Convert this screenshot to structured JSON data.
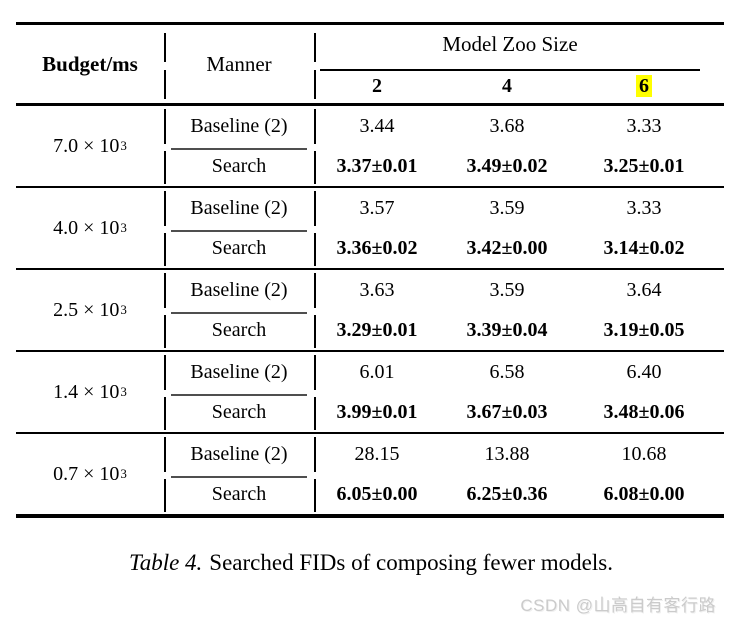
{
  "page": {
    "background": "#ffffff"
  },
  "table": {
    "header": {
      "budget_label": "Budget/ms",
      "manner_label": "Manner",
      "zoo_group_label": "Model Zoo Size",
      "zoo_sizes": [
        "2",
        "4",
        "6"
      ],
      "highlighted_zoo_size": "6",
      "highlight_color": "#ffff00"
    },
    "blocks": [
      {
        "budget_base": "7.0 × 10",
        "budget_exp": "3",
        "baseline_label": "Baseline (2)",
        "baseline_values": [
          "3.44",
          "3.68",
          "3.33"
        ],
        "search_label": "Search",
        "search_values": [
          "3.37±0.01",
          "3.49±0.02",
          "3.25±0.01"
        ]
      },
      {
        "budget_base": "4.0 × 10",
        "budget_exp": "3",
        "baseline_label": "Baseline (2)",
        "baseline_values": [
          "3.57",
          "3.59",
          "3.33"
        ],
        "search_label": "Search",
        "search_values": [
          "3.36±0.02",
          "3.42±0.00",
          "3.14±0.02"
        ]
      },
      {
        "budget_base": "2.5 × 10",
        "budget_exp": "3",
        "baseline_label": "Baseline (2)",
        "baseline_values": [
          "3.63",
          "3.59",
          "3.64"
        ],
        "search_label": "Search",
        "search_values": [
          "3.29±0.01",
          "3.39±0.04",
          "3.19±0.05"
        ]
      },
      {
        "budget_base": "1.4 × 10",
        "budget_exp": "3",
        "baseline_label": "Baseline (2)",
        "baseline_values": [
          "6.01",
          "6.58",
          "6.40"
        ],
        "search_label": "Search",
        "search_values": [
          "3.99±0.01",
          "3.67±0.03",
          "3.48±0.06"
        ]
      },
      {
        "budget_base": "0.7 × 10",
        "budget_exp": "3",
        "baseline_label": "Baseline (2)",
        "baseline_values": [
          "28.15",
          "13.88",
          "10.68"
        ],
        "search_label": "Search",
        "search_values": [
          "6.05±0.00",
          "6.25±0.36",
          "6.08±0.00"
        ]
      }
    ]
  },
  "caption": {
    "tag": "Table 4.",
    "text": "Searched FIDs of composing fewer models."
  },
  "watermark": {
    "text": "CSDN @山高自有客行路",
    "color": "#cbcbcb"
  }
}
